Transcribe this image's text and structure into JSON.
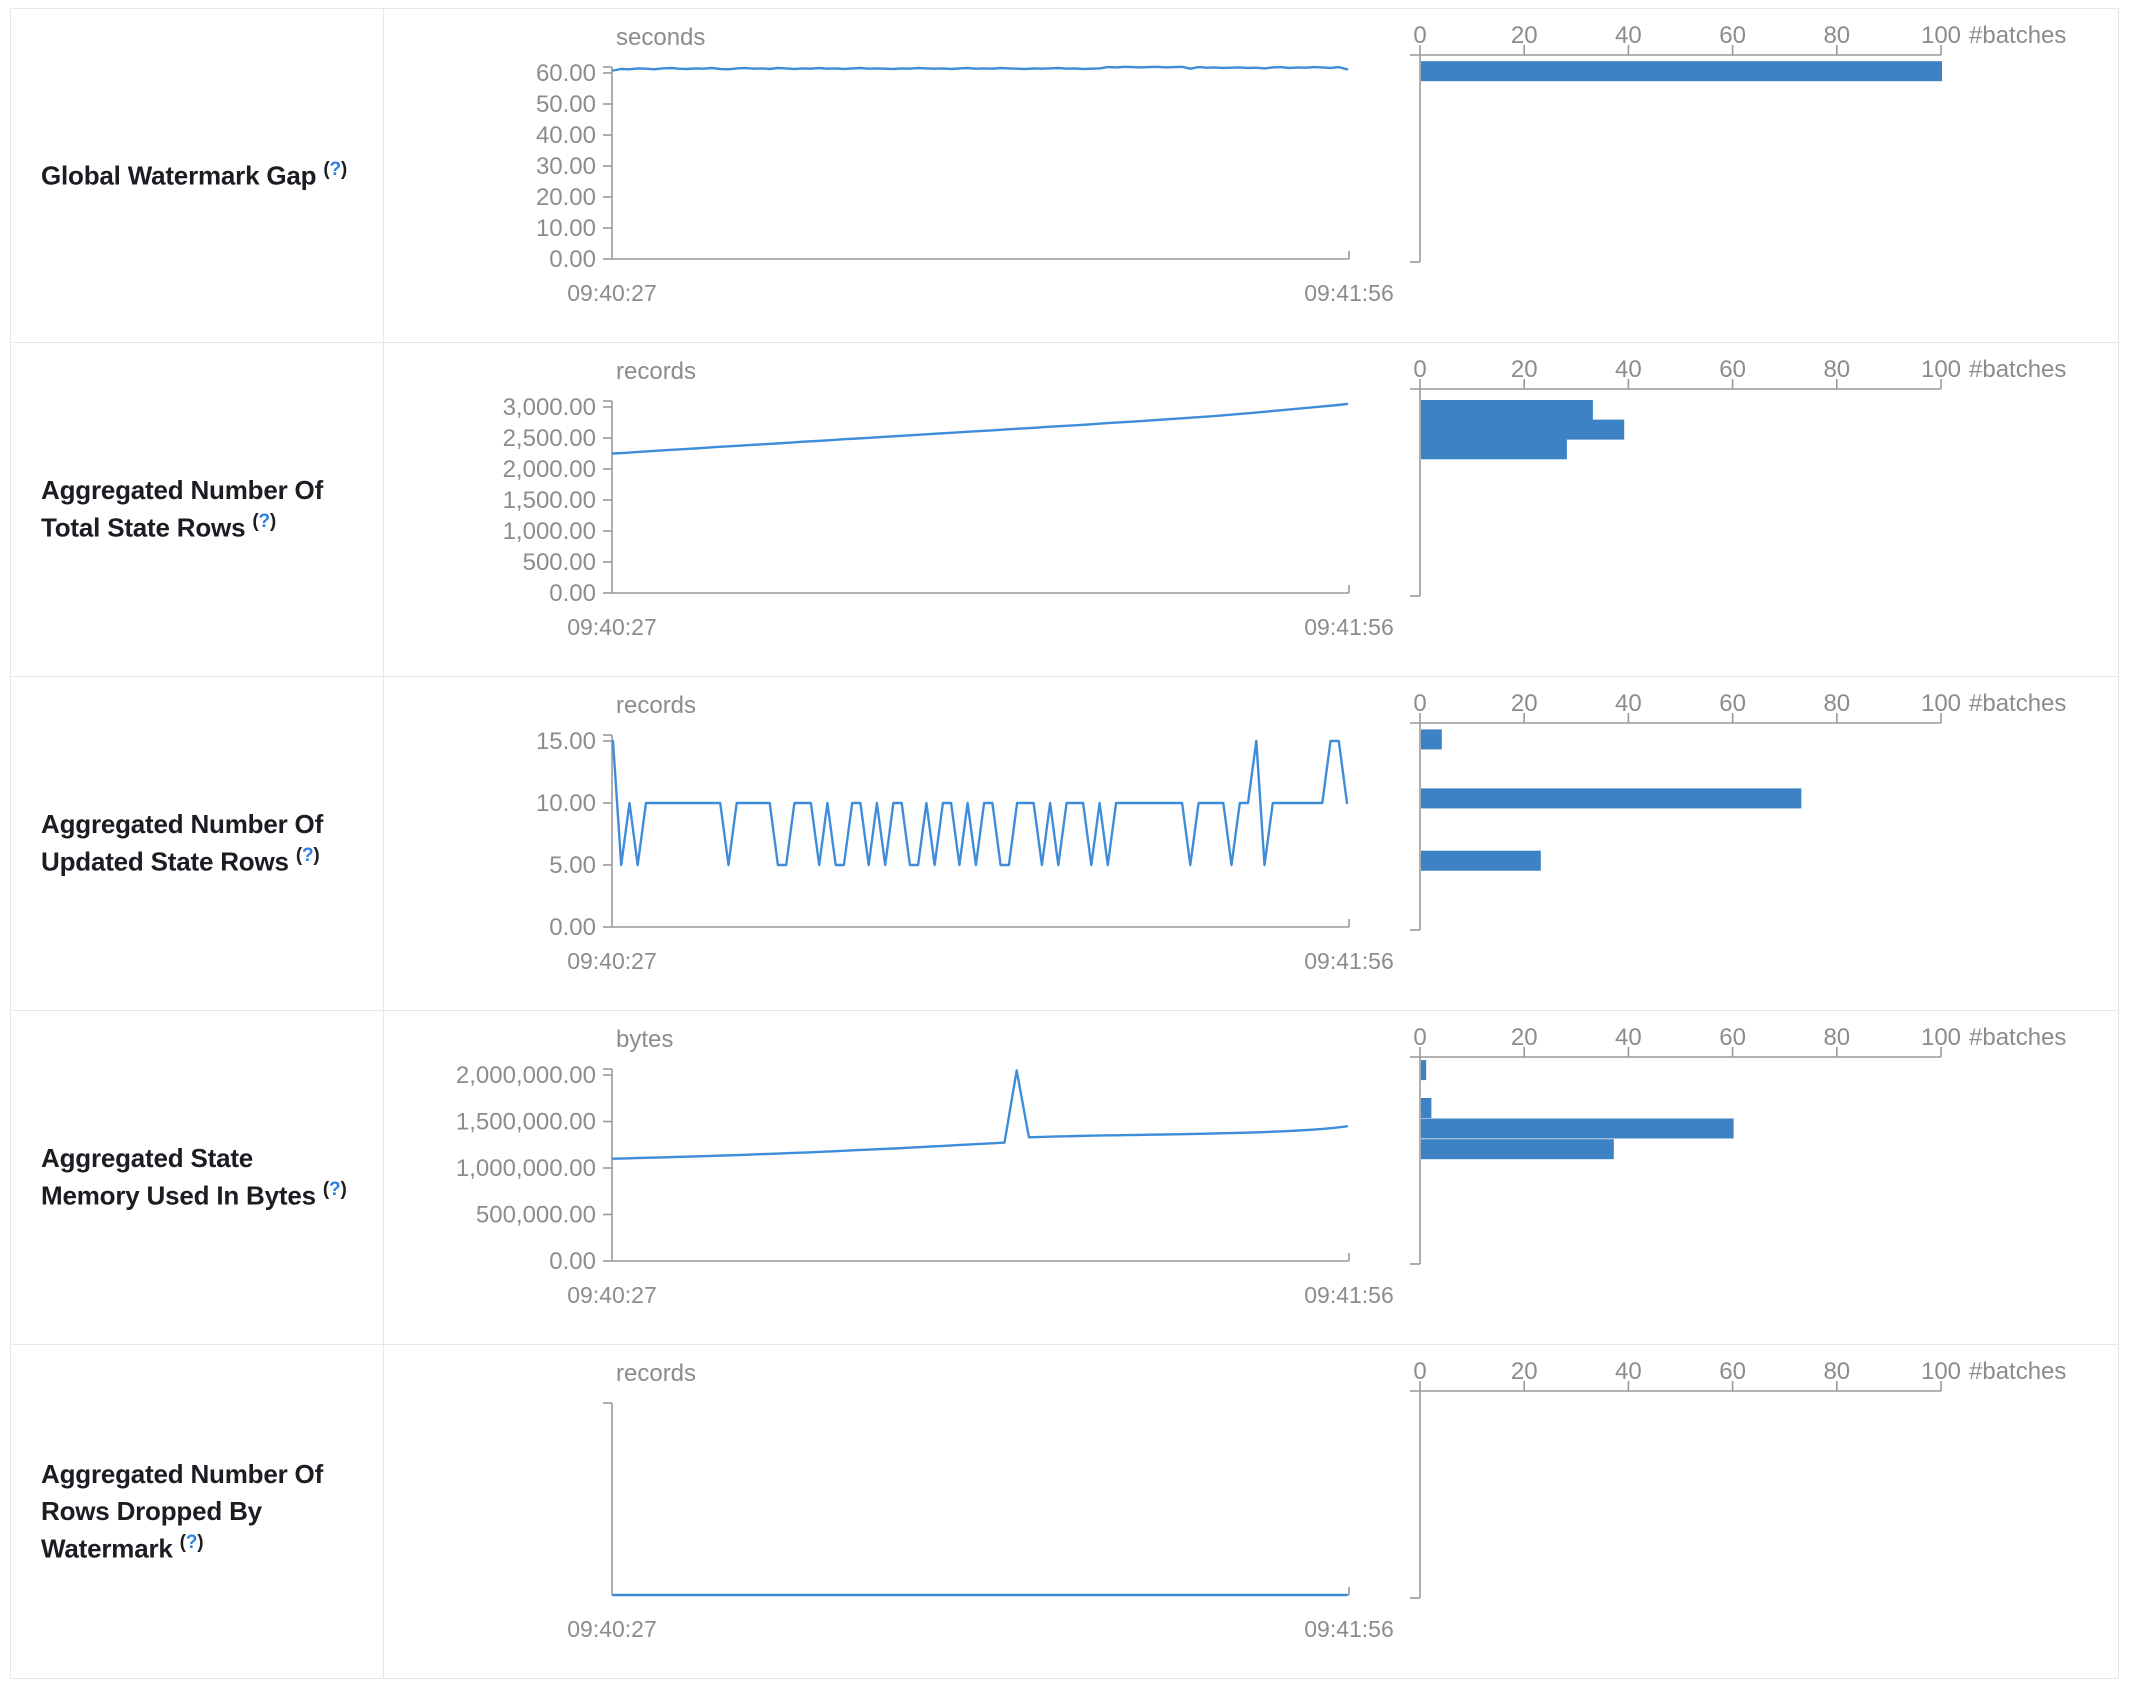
{
  "help": {
    "open": "(",
    "mark": "?",
    "close": ")"
  },
  "colors": {
    "line": "#3f8dd9",
    "bar": "#3d82c4",
    "axis": "#999999",
    "tick_text": "#8c8c8c",
    "label_text": "#1b1d22",
    "help_link": "#2d7ee2",
    "border": "#e4e7eb"
  },
  "table": {
    "time_axis": {
      "start_label": "09:40:27",
      "end_label": "09:41:56"
    },
    "batches_axis": {
      "tick_labels": [
        "0",
        "20",
        "40",
        "60",
        "80",
        "100"
      ],
      "tick_values": [
        0,
        20,
        40,
        60,
        80,
        100
      ],
      "unit_label": "#batches",
      "max": 100
    },
    "rows": [
      {
        "name": "Global Watermark Gap",
        "chart_data": {
          "timeline": {
            "type": "line",
            "unit": "seconds",
            "x_range": [
              "09:40:27",
              "09:41:56"
            ],
            "y_ticks": {
              "labels": [
                "60.00",
                "50.00",
                "40.00",
                "30.00",
                "20.00",
                "10.00",
                "0.00"
              ],
              "values": [
                60,
                50,
                40,
                30,
                20,
                10,
                0
              ]
            },
            "scale_top": 60,
            "values": [
              60.8,
              61.3,
              61.2,
              61.5,
              61.4,
              61.2,
              61.5,
              61.6,
              61.4,
              61.3,
              61.5,
              61.4,
              61.6,
              61.3,
              61.2,
              61.5,
              61.6,
              61.4,
              61.5,
              61.3,
              61.6,
              61.5,
              61.3,
              61.5,
              61.4,
              61.6,
              61.4,
              61.5,
              61.3,
              61.5,
              61.6,
              61.4,
              61.5,
              61.4,
              61.3,
              61.5,
              61.4,
              61.6,
              61.5,
              61.4,
              61.5,
              61.3,
              61.5,
              61.6,
              61.4,
              61.5,
              61.4,
              61.6,
              61.5,
              61.4,
              61.3,
              61.5,
              61.4,
              61.5,
              61.6,
              61.4,
              61.5,
              61.3,
              61.4,
              61.5,
              61.9,
              61.8,
              62.0,
              61.9,
              61.8,
              61.9,
              62.0,
              61.8,
              61.9,
              62.0,
              61.4,
              61.9,
              61.7,
              61.8,
              61.6,
              61.7,
              61.8,
              61.6,
              61.7,
              61.5,
              61.8,
              61.9,
              61.6,
              61.8,
              61.7,
              61.9,
              61.8,
              61.6,
              61.9,
              61.2
            ]
          },
          "histogram": {
            "type": "bar",
            "orientation": "horizontal",
            "xlabel": "#batches",
            "xlim": [
              0,
              100
            ],
            "bars": [
              {
                "count": 100,
                "offset_frac": 0.03
              }
            ]
          }
        }
      },
      {
        "name": "Aggregated Number Of Total State Rows",
        "chart_data": {
          "timeline": {
            "type": "line",
            "unit": "records",
            "x_range": [
              "09:40:27",
              "09:41:56"
            ],
            "y_ticks": {
              "labels": [
                "3,000.00",
                "2,500.00",
                "2,000.00",
                "1,500.00",
                "1,000.00",
                "500.00",
                "0.00"
              ],
              "values": [
                3000,
                2500,
                2000,
                1500,
                1000,
                500,
                0
              ]
            },
            "scale_top": 3000,
            "values": [
              2250,
              2262,
              2278,
              2292,
              2305,
              2318,
              2330,
              2345,
              2360,
              2372,
              2385,
              2398,
              2412,
              2425,
              2440,
              2452,
              2465,
              2480,
              2492,
              2505,
              2520,
              2532,
              2545,
              2560,
              2572,
              2585,
              2600,
              2612,
              2625,
              2640,
              2652,
              2665,
              2680,
              2692,
              2705,
              2720,
              2735,
              2748,
              2762,
              2775,
              2790,
              2805,
              2820,
              2835,
              2850,
              2868,
              2885,
              2905,
              2925,
              2945,
              2965,
              2985,
              3005,
              3025,
              3048
            ]
          },
          "histogram": {
            "type": "bar",
            "orientation": "horizontal",
            "xlabel": "#batches",
            "xlim": [
              0,
              100
            ],
            "bars": [
              {
                "count": 33,
                "offset_frac": 0.053
              },
              {
                "count": 39,
                "offset_frac": 0.148
              },
              {
                "count": 28,
                "offset_frac": 0.243
              }
            ]
          }
        }
      },
      {
        "name": "Aggregated Number Of Updated State Rows",
        "chart_data": {
          "timeline": {
            "type": "line",
            "unit": "records",
            "x_range": [
              "09:40:27",
              "09:41:56"
            ],
            "y_ticks": {
              "labels": [
                "15.00",
                "10.00",
                "5.00",
                "0.00"
              ],
              "values": [
                15,
                10,
                5,
                0
              ]
            },
            "scale_top": 15,
            "values": [
              15,
              5,
              10,
              5,
              10,
              10,
              10,
              10,
              10,
              10,
              10,
              10,
              10,
              10,
              5,
              10,
              10,
              10,
              10,
              10,
              5,
              5,
              10,
              10,
              10,
              5,
              10,
              5,
              5,
              10,
              10,
              5,
              10,
              5,
              10,
              10,
              5,
              5,
              10,
              5,
              10,
              10,
              5,
              10,
              5,
              10,
              10,
              5,
              5,
              10,
              10,
              10,
              5,
              10,
              5,
              10,
              10,
              10,
              5,
              10,
              5,
              10,
              10,
              10,
              10,
              10,
              10,
              10,
              10,
              10,
              5,
              10,
              10,
              10,
              10,
              5,
              10,
              10,
              15,
              5,
              10,
              10,
              10,
              10,
              10,
              10,
              10,
              15,
              15,
              10
            ]
          },
          "histogram": {
            "type": "bar",
            "orientation": "horizontal",
            "xlabel": "#batches",
            "xlim": [
              0,
              100
            ],
            "bars": [
              {
                "count": 4,
                "offset_frac": 0.031
              },
              {
                "count": 73,
                "offset_frac": 0.316
              },
              {
                "count": 23,
                "offset_frac": 0.617
              }
            ]
          }
        }
      },
      {
        "name": "Aggregated State Memory Used In Bytes",
        "chart_data": {
          "timeline": {
            "type": "line",
            "unit": "bytes",
            "x_range": [
              "09:40:27",
              "09:41:56"
            ],
            "y_ticks": {
              "labels": [
                "2,000,000.00",
                "1,500,000.00",
                "1,000,000.00",
                "500,000.00",
                "0.00"
              ],
              "values": [
                2000000,
                1500000,
                1000000,
                500000,
                0
              ]
            },
            "scale_top": 2000000,
            "values": [
              1100000,
              1103000,
              1107000,
              1111000,
              1114000,
              1118000,
              1122000,
              1126000,
              1130000,
              1134000,
              1138000,
              1143000,
              1148000,
              1153000,
              1158000,
              1163000,
              1168000,
              1174000,
              1180000,
              1186000,
              1192000,
              1198000,
              1204000,
              1210000,
              1217000,
              1224000,
              1231000,
              1238000,
              1245000,
              1252000,
              1259000,
              1266000,
              1273000,
              2050000,
              1330000,
              1334000,
              1338000,
              1341000,
              1344000,
              1347000,
              1350000,
              1352000,
              1354000,
              1356000,
              1358000,
              1360000,
              1362000,
              1365000,
              1368000,
              1371000,
              1374000,
              1377000,
              1381000,
              1385000,
              1390000,
              1396000,
              1403000,
              1411000,
              1420000,
              1432000,
              1448000
            ]
          },
          "histogram": {
            "type": "bar",
            "orientation": "horizontal",
            "xlabel": "#batches",
            "xlim": [
              0,
              100
            ],
            "bars": [
              {
                "count": 1,
                "offset_frac": 0.015
              },
              {
                "count": 2,
                "offset_frac": 0.198
              },
              {
                "count": 60,
                "offset_frac": 0.297
              },
              {
                "count": 37,
                "offset_frac": 0.397
              }
            ]
          }
        }
      },
      {
        "name": "Aggregated Number Of Rows Dropped By Watermark",
        "chart_data": {
          "timeline": {
            "type": "line",
            "unit": "records",
            "x_range": [
              "09:40:27",
              "09:41:56"
            ],
            "y_ticks": {
              "labels": [],
              "values": []
            },
            "scale_top": 1,
            "values": [
              0,
              0,
              0,
              0,
              0,
              0,
              0,
              0,
              0,
              0
            ]
          },
          "histogram": {
            "type": "bar",
            "orientation": "horizontal",
            "xlabel": "#batches",
            "xlim": [
              0,
              100
            ],
            "bars": []
          }
        }
      }
    ]
  }
}
